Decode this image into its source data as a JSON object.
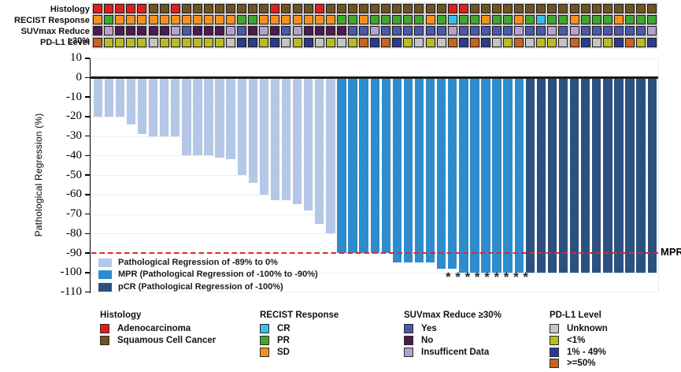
{
  "chart_data": {
    "type": "bar",
    "title": "",
    "ylabel": "Pathological Regression (%)",
    "ylim": [
      -110,
      10
    ],
    "yticks": [
      10,
      0,
      -10,
      -20,
      -30,
      -40,
      -50,
      -60,
      -70,
      -80,
      -90,
      -100,
      -110
    ],
    "grid": "horizontal-light",
    "legend_position": "inside-bottom-left",
    "series": [
      {
        "name": "Pathological Regression of -89% to 0%",
        "color": "#b5c7e6",
        "values": [
          -20,
          -20,
          -20,
          -24,
          -29,
          -30,
          -30,
          -30,
          -40,
          -40,
          -40,
          -41,
          -42,
          -50,
          -54,
          -60,
          -63,
          -63,
          -65,
          -68,
          -75,
          -80
        ]
      },
      {
        "name": "MPR (Pathological Regression of -100% to -90%)",
        "color": "#2e8ccd",
        "values": [
          -90,
          -90,
          -90,
          -90,
          -90,
          -95,
          -95,
          -95,
          -95,
          -98,
          -98,
          -100,
          -100,
          -100,
          -100,
          -100,
          -100
        ]
      },
      {
        "name": "pCR (Pathological Regression of -100%)",
        "color": "#2b5180",
        "values": [
          -100,
          -100,
          -100,
          -100,
          -100,
          -100,
          -100,
          -100,
          -100,
          -100,
          -100,
          -100
        ]
      }
    ],
    "threshold_line": {
      "y": -90,
      "style": "dashed",
      "color": "#e3242b",
      "label": "MPR"
    },
    "asterisks": {
      "symbol": "*",
      "count": 9
    },
    "annotation_tracks": [
      {
        "label": "Histology",
        "palette": {
          "A": "#e11d1d",
          "S": "#705420"
        },
        "values": [
          "A",
          "A",
          "A",
          "A",
          "A",
          "S",
          "S",
          "A",
          "S",
          "S",
          "S",
          "S",
          "S",
          "S",
          "S",
          "S",
          "A",
          "S",
          "S",
          "S",
          "A",
          "S",
          "S",
          "S",
          "S",
          "S",
          "S",
          "S",
          "S",
          "S",
          "S",
          "S",
          "A",
          "A",
          "S",
          "S",
          "S",
          "S",
          "S",
          "S",
          "S",
          "S",
          "S",
          "S",
          "S",
          "S",
          "S",
          "S",
          "S",
          "S",
          "S"
        ]
      },
      {
        "label": "RECIST Response",
        "palette": {
          "O": "#f29120",
          "G": "#41a530",
          "C": "#38bdec"
        },
        "values": [
          "O",
          "G",
          "O",
          "O",
          "O",
          "O",
          "O",
          "O",
          "O",
          "O",
          "O",
          "O",
          "O",
          "G",
          "G",
          "O",
          "O",
          "O",
          "O",
          "O",
          "O",
          "O",
          "G",
          "G",
          "O",
          "G",
          "G",
          "G",
          "G",
          "G",
          "O",
          "G",
          "C",
          "G",
          "G",
          "O",
          "G",
          "G",
          "O",
          "G",
          "C",
          "G",
          "G",
          "O",
          "G",
          "G",
          "G",
          "O",
          "G",
          "G",
          "G"
        ]
      },
      {
        "label": "SUVmax Reduce ≥30%",
        "palette": {
          "Y": "#4c58aa",
          "N": "#4f1a52",
          "I": "#b7a0cd"
        },
        "values": [
          "N",
          "I",
          "N",
          "N",
          "N",
          "N",
          "N",
          "I",
          "Y",
          "N",
          "N",
          "N",
          "I",
          "Y",
          "N",
          "I",
          "N",
          "Y",
          "I",
          "N",
          "N",
          "N",
          "N",
          "Y",
          "Y",
          "I",
          "Y",
          "Y",
          "Y",
          "Y",
          "Y",
          "Y",
          "I",
          "Y",
          "Y",
          "Y",
          "Y",
          "Y",
          "I",
          "Y",
          "Y",
          "I",
          "Y",
          "I",
          "Y",
          "Y",
          "Y",
          "Y",
          "Y",
          "Y",
          "I"
        ]
      },
      {
        "label": "PD-L1 Level",
        "palette": {
          "U": "#c4c4c4",
          "L": "#b9bb20",
          "M": "#2c3a92",
          "H": "#c8641f"
        },
        "values": [
          "H",
          "L",
          "L",
          "L",
          "L",
          "U",
          "L",
          "L",
          "L",
          "L",
          "L",
          "L",
          "U",
          "M",
          "M",
          "L",
          "M",
          "U",
          "L",
          "M",
          "U",
          "L",
          "U",
          "L",
          "H",
          "M",
          "H",
          "M",
          "L",
          "U",
          "L",
          "U",
          "H",
          "M",
          "H",
          "M",
          "U",
          "L",
          "H",
          "U",
          "L",
          "L",
          "U",
          "H",
          "M",
          "U",
          "L",
          "M",
          "H",
          "L",
          "M"
        ]
      }
    ],
    "legend_groups": [
      {
        "title": "Histology",
        "items": [
          {
            "label": "Adenocarcinoma",
            "color": "#e11d1d"
          },
          {
            "label": "Squamous Cell Cancer",
            "color": "#705420"
          }
        ]
      },
      {
        "title": "RECIST Response",
        "items": [
          {
            "label": "CR",
            "color": "#38bdec"
          },
          {
            "label": "PR",
            "color": "#41a530"
          },
          {
            "label": "SD",
            "color": "#f29120"
          }
        ]
      },
      {
        "title": "SUVmax Reduce ≥30%",
        "items": [
          {
            "label": "Yes",
            "color": "#4c58aa"
          },
          {
            "label": "No",
            "color": "#4f1a52"
          },
          {
            "label": "Insufficent Data",
            "color": "#b7a0cd"
          }
        ]
      },
      {
        "title": "PD-L1 Level",
        "items": [
          {
            "label": "Unknown",
            "color": "#c4c4c4"
          },
          {
            "label": "<1%",
            "color": "#b9bb20"
          },
          {
            "label": "1% - 49%",
            "color": "#2c3a92"
          },
          {
            "label": ">=50%",
            "color": "#c8641f"
          }
        ]
      }
    ]
  }
}
